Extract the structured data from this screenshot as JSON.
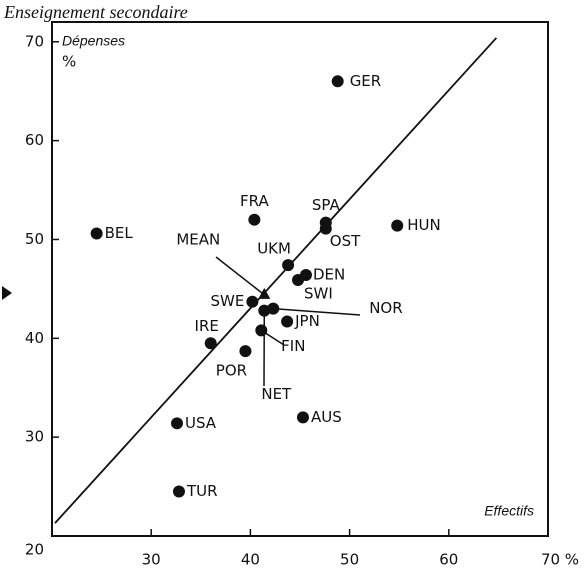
{
  "chart_data": {
    "type": "scatter",
    "title": "Enseignement secondaire",
    "y_label": "Dépenses",
    "y_unit": "%",
    "x_label": "Effectifs",
    "color": "#111111",
    "xlim": [
      20,
      70
    ],
    "ylim": [
      20,
      72
    ],
    "xticks": [
      30,
      40,
      50,
      60,
      {
        "value": 70,
        "label": "70 %"
      }
    ],
    "yticks": [
      20,
      30,
      40,
      50,
      60,
      70
    ],
    "fit_line": {
      "x": [
        20.3,
        64.8
      ],
      "y": [
        21.3,
        70.4
      ]
    },
    "points": [
      {
        "label": "GER",
        "x": 48.8,
        "y": 66.0
      },
      {
        "label": "BEL",
        "x": 24.5,
        "y": 50.6
      },
      {
        "label": "FRA",
        "x": 40.4,
        "y": 52.0
      },
      {
        "label": "SPA",
        "x": 47.6,
        "y": 51.7
      },
      {
        "label": "OST",
        "x": 47.6,
        "y": 51.1
      },
      {
        "label": "HUN",
        "x": 54.8,
        "y": 51.4
      },
      {
        "label": "UKM",
        "x": 43.8,
        "y": 47.4
      },
      {
        "label": "DEN",
        "x": 45.6,
        "y": 46.4
      },
      {
        "label": "SWI",
        "x": 44.8,
        "y": 45.9
      },
      {
        "label": "MEAN",
        "x": 41.4,
        "y": 44.4,
        "marker": "triangle"
      },
      {
        "label": "SWE",
        "x": 40.2,
        "y": 43.7
      },
      {
        "label": "NOR",
        "x": 42.3,
        "y": 43.0
      },
      {
        "label": "NET",
        "x": 41.4,
        "y": 42.8
      },
      {
        "label": "JPN",
        "x": 43.7,
        "y": 41.7
      },
      {
        "label": "FIN",
        "x": 41.1,
        "y": 40.8
      },
      {
        "label": "IRE",
        "x": 36.0,
        "y": 39.5
      },
      {
        "label": "POR",
        "x": 39.5,
        "y": 38.7
      },
      {
        "label": "AUS",
        "x": 45.3,
        "y": 32.0
      },
      {
        "label": "USA",
        "x": 32.6,
        "y": 31.4
      },
      {
        "label": "TUR",
        "x": 32.8,
        "y": 24.5
      }
    ]
  }
}
